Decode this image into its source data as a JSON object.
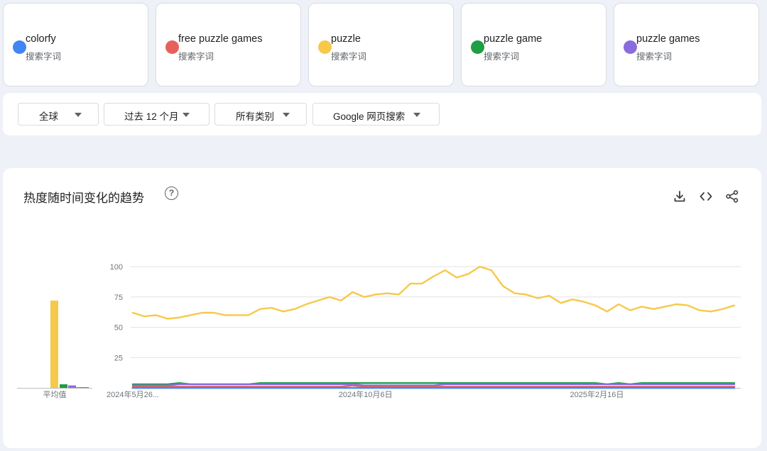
{
  "terms": [
    {
      "name": "colorfy",
      "sub": "搜索字词",
      "color": "#4285f4"
    },
    {
      "name": "free puzzle games",
      "sub": "搜索字词",
      "color": "#e8605c"
    },
    {
      "name": "puzzle",
      "sub": "搜索字词",
      "color": "#f6c94a"
    },
    {
      "name": "puzzle game",
      "sub": "搜索字词",
      "color": "#1e9e45"
    },
    {
      "name": "puzzle games",
      "sub": "搜索字词",
      "color": "#8a6ddc"
    }
  ],
  "filters": {
    "region": "全球",
    "period": "过去 12 个月",
    "category": "所有类别",
    "search_type": "Google 网页搜索"
  },
  "chart": {
    "title": "热度随时间变化的趋势",
    "help_glyph": "?",
    "icons": [
      "download-icon",
      "embed-code-icon",
      "share-icon"
    ]
  },
  "chart_data": {
    "type": "line",
    "title": "热度随时间变化的趋势",
    "ylim": [
      0,
      100
    ],
    "yticks": [
      25,
      50,
      75,
      100
    ],
    "xtick_labels": [
      "2024年5月26...",
      "2024年10月6日",
      "2025年2月16日"
    ],
    "xtick_index": [
      0,
      20,
      40
    ],
    "grid": true,
    "average_label": "平均值",
    "averages": [
      {
        "name": "colorfy",
        "value": 0.5
      },
      {
        "name": "free puzzle games",
        "value": 0.4
      },
      {
        "name": "puzzle",
        "value": 72
      },
      {
        "name": "puzzle game",
        "value": 3
      },
      {
        "name": "puzzle games",
        "value": 2
      }
    ],
    "series": [
      {
        "name": "puzzle",
        "values": [
          62,
          59,
          60,
          57,
          58,
          60,
          62,
          62,
          60,
          60,
          60,
          65,
          66,
          63,
          65,
          69,
          72,
          75,
          72,
          79,
          75,
          77,
          78,
          77,
          86,
          86,
          92,
          97,
          91,
          94,
          100,
          97,
          84,
          78,
          77,
          74,
          76,
          70,
          73,
          71,
          68,
          63,
          69,
          64,
          67,
          65,
          67,
          69,
          68,
          64,
          63,
          65,
          68
        ]
      },
      {
        "name": "puzzle game",
        "values": [
          3,
          3,
          3,
          3,
          4,
          3,
          3,
          3,
          3,
          3,
          3,
          4,
          4,
          4,
          4,
          4,
          4,
          4,
          4,
          4,
          4,
          4,
          4,
          4,
          4,
          4,
          4,
          4,
          4,
          4,
          4,
          4,
          4,
          4,
          4,
          4,
          4,
          4,
          4,
          4,
          4,
          3,
          4,
          3,
          4,
          4,
          4,
          4,
          4,
          4,
          4,
          4,
          4
        ]
      },
      {
        "name": "puzzle games",
        "values": [
          2,
          2,
          2,
          2,
          3,
          3,
          3,
          3,
          3,
          3,
          3,
          3,
          3,
          3,
          3,
          3,
          3,
          3,
          3,
          3,
          2,
          2,
          2,
          2,
          2,
          2,
          2,
          3,
          3,
          3,
          3,
          3,
          3,
          3,
          3,
          3,
          3,
          3,
          3,
          3,
          3,
          3,
          3,
          3,
          3,
          3,
          3,
          3,
          3,
          3,
          3,
          3,
          3
        ]
      },
      {
        "name": "free puzzle games",
        "values": [
          1,
          1,
          1,
          1,
          1,
          1,
          1,
          1,
          1,
          1,
          1,
          1,
          1,
          1,
          1,
          1,
          1,
          1,
          1,
          2,
          1,
          1,
          1,
          1,
          1,
          1,
          1,
          1,
          1,
          1,
          1,
          1,
          1,
          1,
          1,
          1,
          1,
          1,
          1,
          1,
          1,
          1,
          1,
          1,
          1,
          1,
          1,
          1,
          1,
          1,
          1,
          1,
          1
        ]
      },
      {
        "name": "colorfy",
        "values": [
          0,
          0,
          0,
          0,
          0,
          0,
          0,
          0,
          0,
          0,
          0,
          0,
          0,
          0,
          0,
          0,
          0,
          0,
          0,
          0,
          0,
          0,
          0,
          0,
          0,
          0,
          0,
          0,
          0,
          0,
          0,
          0,
          0,
          0,
          0,
          0,
          0,
          0,
          0,
          0,
          0,
          0,
          0,
          0,
          0,
          0,
          0,
          0,
          0,
          0,
          0,
          0,
          0
        ]
      }
    ]
  }
}
